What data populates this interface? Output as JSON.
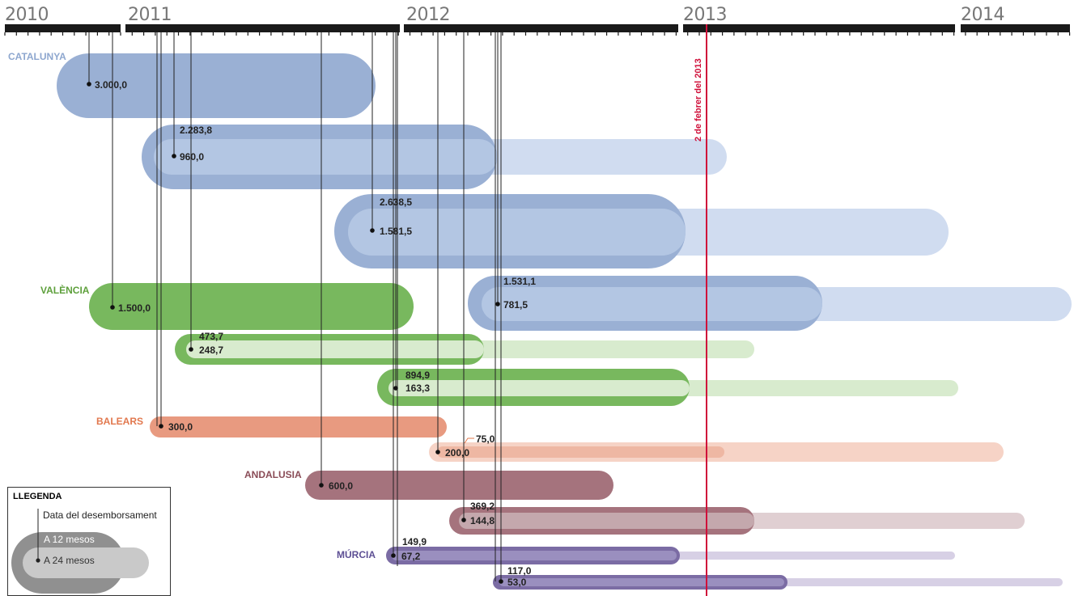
{
  "years": [
    "2010",
    "2011",
    "2012",
    "2013",
    "2014"
  ],
  "marker_label": "2 de febrer del 2013",
  "colors": {
    "catalunya_dark": "#9ab0d4",
    "catalunya_mid": "#b3c6e3",
    "catalunya_light": "#d0dcf0",
    "valencia_dark": "#78b85e",
    "valencia_light": "#d8ebce",
    "balears_dark": "#e89a80",
    "balears_light": "#f6d3c6",
    "andalusia_dark": "#a5737d",
    "andalusia_light": "#e0cfd2",
    "murcia_dark": "#7b6ca4",
    "murcia_light": "#d7d0e5",
    "marker": "#d0103a"
  },
  "regions": [
    {
      "name": "CATALUNYA",
      "color": "#8ea7cf"
    },
    {
      "name": "VALÈNCIA",
      "color": "#5ea03c"
    },
    {
      "name": "BALEARS",
      "color": "#e2784e"
    },
    {
      "name": "ANDALUSIA",
      "color": "#8a4c57"
    },
    {
      "name": "MÚRCIA",
      "color": "#5d4f94"
    }
  ],
  "chart_data": {
    "type": "timeline",
    "marker_date": "2 de febrer del 2013",
    "rows": [
      {
        "region": "CATALUNYA",
        "disbursement": "2010-05",
        "a12": null,
        "a24": "3.000,0"
      },
      {
        "region": "CATALUNYA",
        "disbursement": "2011-02",
        "a12": "2.283,8",
        "a24": "960,0"
      },
      {
        "region": "CATALUNYA",
        "disbursement": "2011-12",
        "a12": "2.638,5",
        "a24": "1.581,5"
      },
      {
        "region": "CATALUNYA",
        "disbursement": "2012-07",
        "a12": "1.531,1",
        "a24": "781,5"
      },
      {
        "region": "VALÈNCIA",
        "disbursement": "2010-06",
        "a12": null,
        "a24": "1.500,0"
      },
      {
        "region": "VALÈNCIA",
        "disbursement": "2011-03",
        "a12": "473,7",
        "a24": "248,7"
      },
      {
        "region": "VALÈNCIA",
        "disbursement": "2011-12",
        "a12": "894,9",
        "a24": "163,3"
      },
      {
        "region": "BALEARS",
        "disbursement": "2011-01",
        "a12": null,
        "a24": "300,0"
      },
      {
        "region": "BALEARS",
        "disbursement": "2012-03",
        "a12": "75,0",
        "a24": "200,0"
      },
      {
        "region": "ANDALUSIA",
        "disbursement": "2011-08",
        "a12": null,
        "a24": "600,0"
      },
      {
        "region": "ANDALUSIA",
        "disbursement": "2012-04",
        "a12": "369,2",
        "a24": "144,8"
      },
      {
        "region": "MÚRCIA",
        "disbursement": "2011-12",
        "a12": "149,9",
        "a24": "67,2"
      },
      {
        "region": "MÚRCIA",
        "disbursement": "2012-07",
        "a12": "117,0",
        "a24": "53,0"
      }
    ]
  },
  "legend": {
    "title": "LLEGENDA",
    "date_label": "Data del desemborsament",
    "label_12": "A 12 mesos",
    "label_24": "A 24 mesos"
  }
}
